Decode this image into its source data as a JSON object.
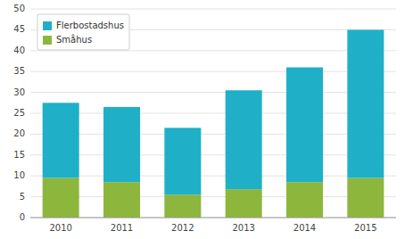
{
  "chart_data": {
    "type": "bar",
    "stacked": true,
    "categories": [
      "2010",
      "2011",
      "2012",
      "2013",
      "2014",
      "2015"
    ],
    "series": [
      {
        "name": "Småhus",
        "color": "#8db63c",
        "values": [
          9.5,
          8.5,
          5.5,
          6.8,
          8.5,
          9.5
        ]
      },
      {
        "name": "Flerbostadshus",
        "color": "#1fb0c8",
        "values": [
          18.0,
          18.0,
          16.0,
          23.7,
          27.5,
          35.5
        ]
      }
    ],
    "ylim": [
      0,
      50
    ],
    "yticks": [
      0,
      5,
      10,
      15,
      20,
      25,
      30,
      35,
      40,
      45,
      50
    ],
    "grid": true,
    "legend": "upper left"
  }
}
